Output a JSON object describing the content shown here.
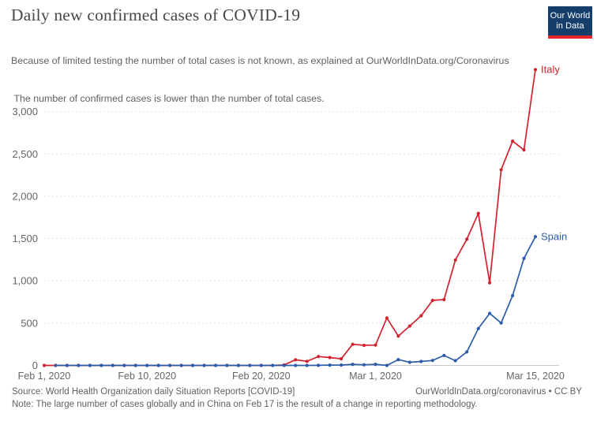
{
  "header": {
    "title": "Daily new confirmed cases of COVID-19",
    "subtitle_line1": "Because of limited testing the number of total cases is not known, as explained at OurWorldInData.org/Coronavirus",
    "subtitle_line2": " The number of confirmed cases is lower than the number of total cases.",
    "logo": {
      "line1": "Our World",
      "line2": "in Data",
      "bg_color": "#153e6b",
      "stripe_color": "#e2262c"
    }
  },
  "chart_data": {
    "type": "line",
    "title": "Daily new confirmed cases of COVID-19",
    "xlabel": "",
    "ylabel": "",
    "grid": true,
    "legend_position": "end-of-line labels",
    "ylim": [
      0,
      3550
    ],
    "y_axis": {
      "ticks": [
        {
          "value": 0,
          "label": "0"
        },
        {
          "value": 500,
          "label": "500"
        },
        {
          "value": 1000,
          "label": "1,000"
        },
        {
          "value": 1500,
          "label": "1,500"
        },
        {
          "value": 2000,
          "label": "2,000"
        },
        {
          "value": 2500,
          "label": "2,500"
        },
        {
          "value": 3000,
          "label": "3,000"
        }
      ]
    },
    "x_axis": {
      "start": "Feb 1, 2020",
      "end": "Mar 15, 2020",
      "ticks": [
        {
          "day": 0,
          "label": "Feb 1, 2020"
        },
        {
          "day": 9,
          "label": "Feb 10, 2020"
        },
        {
          "day": 19,
          "label": "Feb 20, 2020"
        },
        {
          "day": 29,
          "label": "Mar 1, 2020"
        },
        {
          "day": 43,
          "label": "Mar 15, 2020"
        }
      ]
    },
    "dates": [
      "Feb 1",
      "Feb 2",
      "Feb 3",
      "Feb 4",
      "Feb 5",
      "Feb 6",
      "Feb 7",
      "Feb 8",
      "Feb 9",
      "Feb 10",
      "Feb 11",
      "Feb 12",
      "Feb 13",
      "Feb 14",
      "Feb 15",
      "Feb 16",
      "Feb 17",
      "Feb 18",
      "Feb 19",
      "Feb 20",
      "Feb 21",
      "Feb 22",
      "Feb 23",
      "Feb 24",
      "Feb 25",
      "Feb 26",
      "Feb 27",
      "Feb 28",
      "Feb 29",
      "Mar 1",
      "Mar 2",
      "Mar 3",
      "Mar 4",
      "Mar 5",
      "Mar 6",
      "Mar 7",
      "Mar 8",
      "Mar 9",
      "Mar 10",
      "Mar 11",
      "Mar 12",
      "Mar 13",
      "Mar 14",
      "Mar 15"
    ],
    "series": [
      {
        "name": "Italy",
        "color": "#d0232e",
        "values": [
          0,
          0,
          0,
          0,
          0,
          0,
          0,
          0,
          0,
          0,
          0,
          0,
          0,
          0,
          0,
          0,
          0,
          0,
          0,
          0,
          0,
          6,
          67,
          48,
          105,
          93,
          78,
          250,
          238,
          240,
          561,
          347,
          466,
          587,
          769,
          778,
          1247,
          1492,
          1797,
          977,
          2313,
          2651,
          2547,
          3497
        ]
      },
      {
        "name": "Spain",
        "color": "#2d5da9",
        "values": [
          null,
          0,
          0,
          0,
          0,
          0,
          0,
          0,
          0,
          0,
          0,
          0,
          0,
          0,
          0,
          0,
          0,
          0,
          0,
          0,
          0,
          0,
          0,
          0,
          1,
          4,
          5,
          13,
          7,
          13,
          0,
          69,
          37,
          47,
          59,
          117,
          56,
          159,
          435,
          615,
          501,
          825,
          1266,
          1522
        ]
      }
    ]
  },
  "footer": {
    "source": "Source: World Health Organization daily Situation Reports [COVID-19]",
    "note": "Note: The large number of cases globally and in China on Feb 17 is the result of a change in reporting methodology.",
    "link": "OurWorldInData.org/coronavirus • CC BY"
  }
}
